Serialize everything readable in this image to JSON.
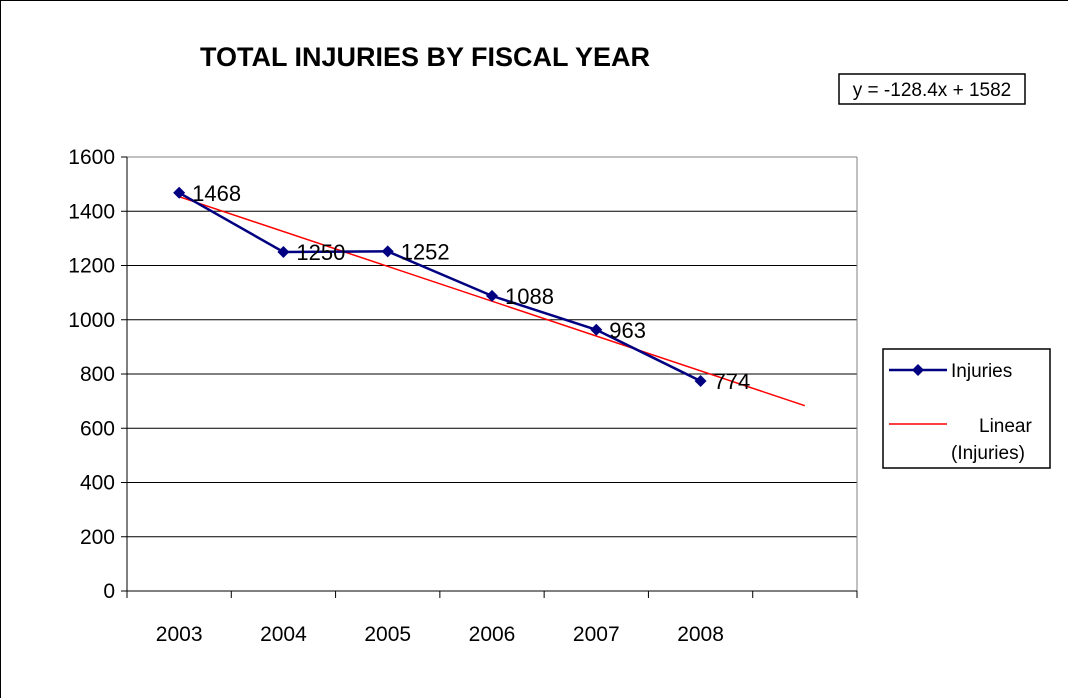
{
  "chart_data": {
    "type": "line",
    "title": "TOTAL INJURIES BY FISCAL YEAR",
    "categories": [
      "2003",
      "2004",
      "2005",
      "2006",
      "2007",
      "2008"
    ],
    "series": [
      {
        "name": "Injuries",
        "values": [
          1468,
          1250,
          1252,
          1088,
          963,
          774
        ],
        "color": "#000080",
        "marker": "diamond"
      }
    ],
    "trendline": {
      "name": "Linear (Injuries)",
      "name_lines": [
        "Linear",
        "(Injuries)"
      ],
      "type": "linear",
      "equation": "y = -128.4x + 1582",
      "slope": -128.4,
      "intercept": 1582,
      "color": "#ff0000",
      "extends_to_x": 7
    },
    "data_labels": [
      "1468",
      "1250",
      "1252",
      "1088",
      "963",
      "774"
    ],
    "ylim": [
      0,
      1600
    ],
    "yticks": [
      "0",
      "200",
      "400",
      "600",
      "800",
      "1000",
      "1200",
      "1400",
      "1600"
    ],
    "xlabel": "",
    "ylabel": "",
    "grid": true,
    "legend": "right"
  }
}
